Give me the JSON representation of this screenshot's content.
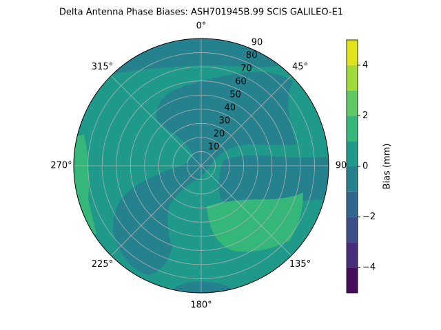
{
  "chart_data": {
    "type": "polar_contour",
    "title": "Delta Antenna Phase Biases: ASH701945B.99   SCIS GALILEO-E1",
    "rlim": [
      0,
      90
    ],
    "rticks": [
      10,
      20,
      30,
      40,
      50,
      60,
      70,
      80,
      90
    ],
    "thetaticks": [
      {
        "value": 0,
        "label": "0°"
      },
      {
        "value": 45,
        "label": "45°"
      },
      {
        "value": 90,
        "label": "90"
      },
      {
        "value": 135,
        "label": "135°"
      },
      {
        "value": 180,
        "label": "180°"
      },
      {
        "value": 225,
        "label": "225°"
      },
      {
        "value": 270,
        "label": "270°"
      },
      {
        "value": 315,
        "label": "315°"
      }
    ],
    "levels": [
      -5,
      -4,
      -3,
      -2,
      -1,
      0,
      1,
      2,
      3,
      4,
      5
    ],
    "colors": [
      "#450c5c",
      "#472d7b",
      "#3c4f8a",
      "#31678e",
      "#26818e",
      "#1f9a8a",
      "#35b779",
      "#5ec962",
      "#9fda3a",
      "#e0e318"
    ],
    "clim": [
      -5,
      5
    ],
    "colorbar_ticks": [
      {
        "value": -4,
        "label": "−4"
      },
      {
        "value": -2,
        "label": "−2"
      },
      0,
      2,
      4
    ],
    "colorbar_label": "Bias (mm)",
    "grid": true
  }
}
